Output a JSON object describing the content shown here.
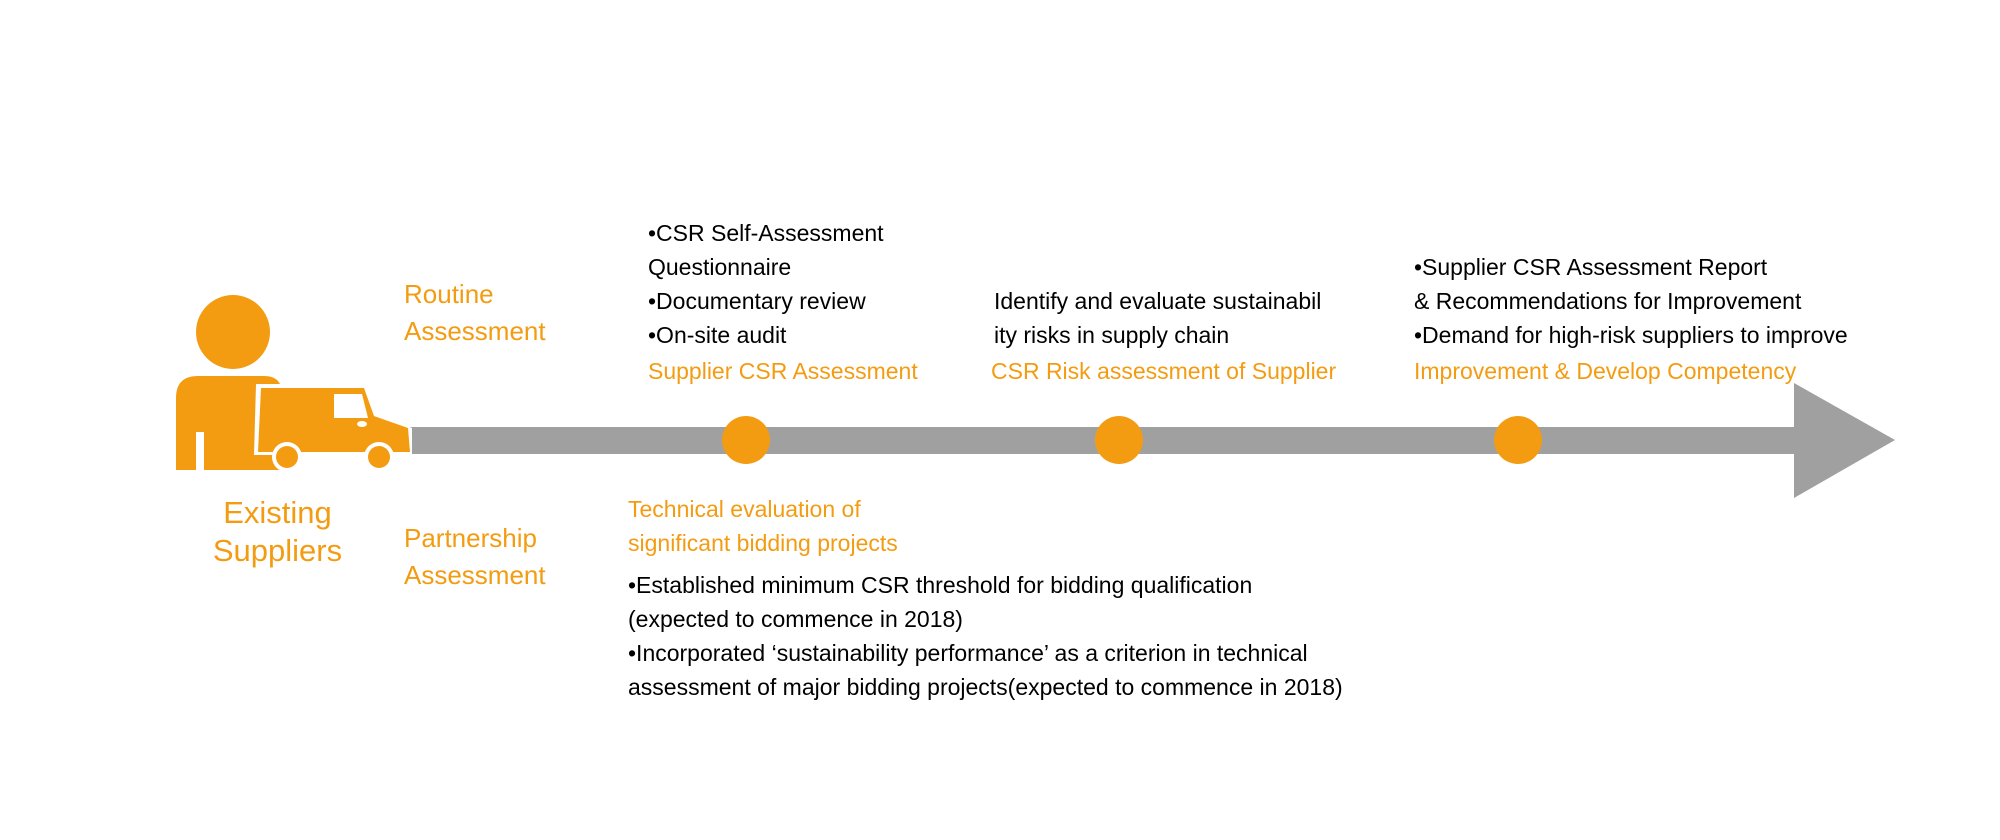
{
  "colors": {
    "accent": "#F39C12",
    "arrow": "#A0A0A0",
    "text": "#000000"
  },
  "icons": {
    "person": "person-icon",
    "truck": "truck-icon"
  },
  "actor": {
    "label_lines": [
      "Existing",
      "Suppliers"
    ]
  },
  "branches": {
    "routine": {
      "lines": [
        "Routine",
        "Assessment"
      ]
    },
    "partnership": {
      "lines": [
        "Partnership",
        "Assessment"
      ]
    }
  },
  "steps": [
    {
      "title": "Supplier CSR Assessment",
      "items": [
        "•CSR Self-Assessment",
        "Questionnaire",
        "•Documentary review",
        "•On-site audit"
      ]
    },
    {
      "title": "CSR Risk assessment of Supplier",
      "items": [
        "Identify and evaluate sustainabil",
        "ity risks in supply chain"
      ]
    },
    {
      "title": "Improvement & Develop Competency",
      "items": [
        "•Supplier CSR Assessment Report",
        "& Recommendations for Improvement",
        "•Demand for high-risk suppliers to improve"
      ]
    }
  ],
  "partnership_detail": {
    "title_lines": [
      "Technical evaluation of",
      "significant bidding projects"
    ],
    "items": [
      "•Established minimum CSR threshold for bidding qualification",
      "(expected to commence in 2018)",
      "•Incorporated ‘sustainability performance’ as a criterion in technical",
      "assessment of major bidding projects(expected to commence in 2018)"
    ]
  }
}
